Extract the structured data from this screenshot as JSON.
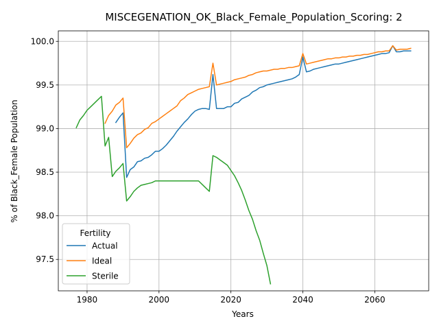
{
  "chart_data": {
    "type": "line",
    "title": "MISCEGENATION_OK_Black_Female_Population_Scoring: 2",
    "xlabel": "Years",
    "ylabel": "% of Black_Female Population",
    "xlim": [
      1972,
      2075
    ],
    "ylim": [
      97.14,
      100.12
    ],
    "xticks": [
      1980,
      2000,
      2020,
      2040,
      2060
    ],
    "yticks": [
      97.5,
      98.0,
      98.5,
      99.0,
      99.5,
      100.0
    ],
    "xtick_labels": [
      "1980",
      "2000",
      "2020",
      "2040",
      "2060"
    ],
    "ytick_labels": [
      "97.5",
      "98.0",
      "98.5",
      "99.0",
      "99.5",
      "100.0"
    ],
    "grid": true,
    "legend": {
      "title": "Fertility",
      "placement": "lower-left"
    },
    "series": [
      {
        "name": "Actual",
        "color": "#1f77b4",
        "x": [
          1988,
          1989,
          1990,
          1991,
          1992,
          1993,
          1994,
          1995,
          1996,
          1997,
          1998,
          1999,
          2000,
          2001,
          2002,
          2003,
          2004,
          2005,
          2006,
          2007,
          2008,
          2009,
          2010,
          2011,
          2012,
          2013,
          2014,
          2015,
          2016,
          2017,
          2018,
          2019,
          2020,
          2021,
          2022,
          2023,
          2024,
          2025,
          2026,
          2027,
          2028,
          2029,
          2030,
          2031,
          2032,
          2033,
          2034,
          2035,
          2036,
          2037,
          2038,
          2039,
          2040,
          2041,
          2042,
          2043,
          2044,
          2045,
          2046,
          2047,
          2048,
          2049,
          2050,
          2051,
          2052,
          2053,
          2054,
          2055,
          2056,
          2057,
          2058,
          2059,
          2060,
          2061,
          2062,
          2063,
          2064,
          2065,
          2066,
          2067,
          2068,
          2069,
          2070
        ],
        "y": [
          99.07,
          99.13,
          99.18,
          98.44,
          98.53,
          98.56,
          98.62,
          98.63,
          98.66,
          98.67,
          98.7,
          98.74,
          98.74,
          98.77,
          98.81,
          98.86,
          98.91,
          98.97,
          99.02,
          99.07,
          99.11,
          99.16,
          99.2,
          99.22,
          99.23,
          99.23,
          99.22,
          99.62,
          99.23,
          99.23,
          99.23,
          99.25,
          99.25,
          99.29,
          99.3,
          99.34,
          99.36,
          99.38,
          99.42,
          99.44,
          99.47,
          99.48,
          99.5,
          99.51,
          99.52,
          99.53,
          99.54,
          99.55,
          99.56,
          99.57,
          99.59,
          99.62,
          99.82,
          99.65,
          99.66,
          99.68,
          99.69,
          99.7,
          99.71,
          99.72,
          99.73,
          99.74,
          99.74,
          99.75,
          99.76,
          99.77,
          99.78,
          99.79,
          99.8,
          99.81,
          99.82,
          99.83,
          99.84,
          99.85,
          99.86,
          99.86,
          99.87,
          99.95,
          99.88,
          99.88,
          99.89,
          99.89,
          99.89
        ]
      },
      {
        "name": "Ideal",
        "color": "#ff7f0e",
        "x": [
          1985,
          1986,
          1987,
          1988,
          1989,
          1990,
          1991,
          1992,
          1993,
          1994,
          1995,
          1996,
          1997,
          1998,
          1999,
          2000,
          2001,
          2002,
          2003,
          2004,
          2005,
          2006,
          2007,
          2008,
          2009,
          2010,
          2011,
          2012,
          2013,
          2014,
          2015,
          2016,
          2017,
          2018,
          2019,
          2020,
          2021,
          2022,
          2023,
          2024,
          2025,
          2026,
          2027,
          2028,
          2029,
          2030,
          2031,
          2032,
          2033,
          2034,
          2035,
          2036,
          2037,
          2038,
          2039,
          2040,
          2041,
          2042,
          2043,
          2044,
          2045,
          2046,
          2047,
          2048,
          2049,
          2050,
          2051,
          2052,
          2053,
          2054,
          2055,
          2056,
          2057,
          2058,
          2059,
          2060,
          2061,
          2062,
          2063,
          2064,
          2065,
          2066,
          2067,
          2068,
          2069,
          2070
        ],
        "y": [
          99.06,
          99.15,
          99.2,
          99.27,
          99.3,
          99.35,
          98.78,
          98.83,
          98.89,
          98.93,
          98.95,
          98.99,
          99.01,
          99.06,
          99.08,
          99.11,
          99.14,
          99.17,
          99.2,
          99.23,
          99.26,
          99.32,
          99.35,
          99.39,
          99.41,
          99.43,
          99.45,
          99.46,
          99.47,
          99.48,
          99.75,
          99.5,
          99.51,
          99.52,
          99.53,
          99.54,
          99.56,
          99.57,
          99.58,
          99.59,
          99.61,
          99.62,
          99.64,
          99.65,
          99.66,
          99.66,
          99.67,
          99.68,
          99.68,
          99.69,
          99.69,
          99.7,
          99.7,
          99.71,
          99.72,
          99.86,
          99.74,
          99.75,
          99.76,
          99.77,
          99.78,
          99.79,
          99.8,
          99.8,
          99.81,
          99.81,
          99.82,
          99.82,
          99.83,
          99.83,
          99.84,
          99.84,
          99.85,
          99.85,
          99.86,
          99.87,
          99.88,
          99.88,
          99.89,
          99.89,
          99.95,
          99.9,
          99.91,
          99.91,
          99.91,
          99.92
        ]
      },
      {
        "name": "Sterile",
        "color": "#2ca02c",
        "x": [
          1977,
          1978,
          1979,
          1980,
          1981,
          1982,
          1983,
          1984,
          1985,
          1986,
          1987,
          1988,
          1989,
          1990,
          1991,
          1992,
          1993,
          1994,
          1995,
          1996,
          1997,
          1998,
          1999,
          2000,
          2001,
          2002,
          2003,
          2004,
          2005,
          2006,
          2007,
          2008,
          2009,
          2010,
          2011,
          2012,
          2013,
          2014,
          2015,
          2016,
          2017,
          2018,
          2019,
          2020,
          2021,
          2022,
          2023,
          2024,
          2025,
          2026,
          2027,
          2028,
          2029,
          2030,
          2031
        ],
        "y": [
          99.01,
          99.1,
          99.15,
          99.21,
          99.25,
          99.29,
          99.33,
          99.37,
          98.8,
          98.9,
          98.45,
          98.51,
          98.55,
          98.6,
          98.17,
          98.22,
          98.28,
          98.32,
          98.35,
          98.36,
          98.37,
          98.38,
          98.4,
          98.4,
          98.4,
          98.4,
          98.4,
          98.4,
          98.4,
          98.4,
          98.4,
          98.4,
          98.4,
          98.4,
          98.4,
          98.36,
          98.32,
          98.28,
          98.69,
          98.67,
          98.64,
          98.61,
          98.58,
          98.52,
          98.46,
          98.38,
          98.29,
          98.18,
          98.06,
          97.96,
          97.83,
          97.72,
          97.57,
          97.43,
          97.22
        ]
      }
    ]
  }
}
